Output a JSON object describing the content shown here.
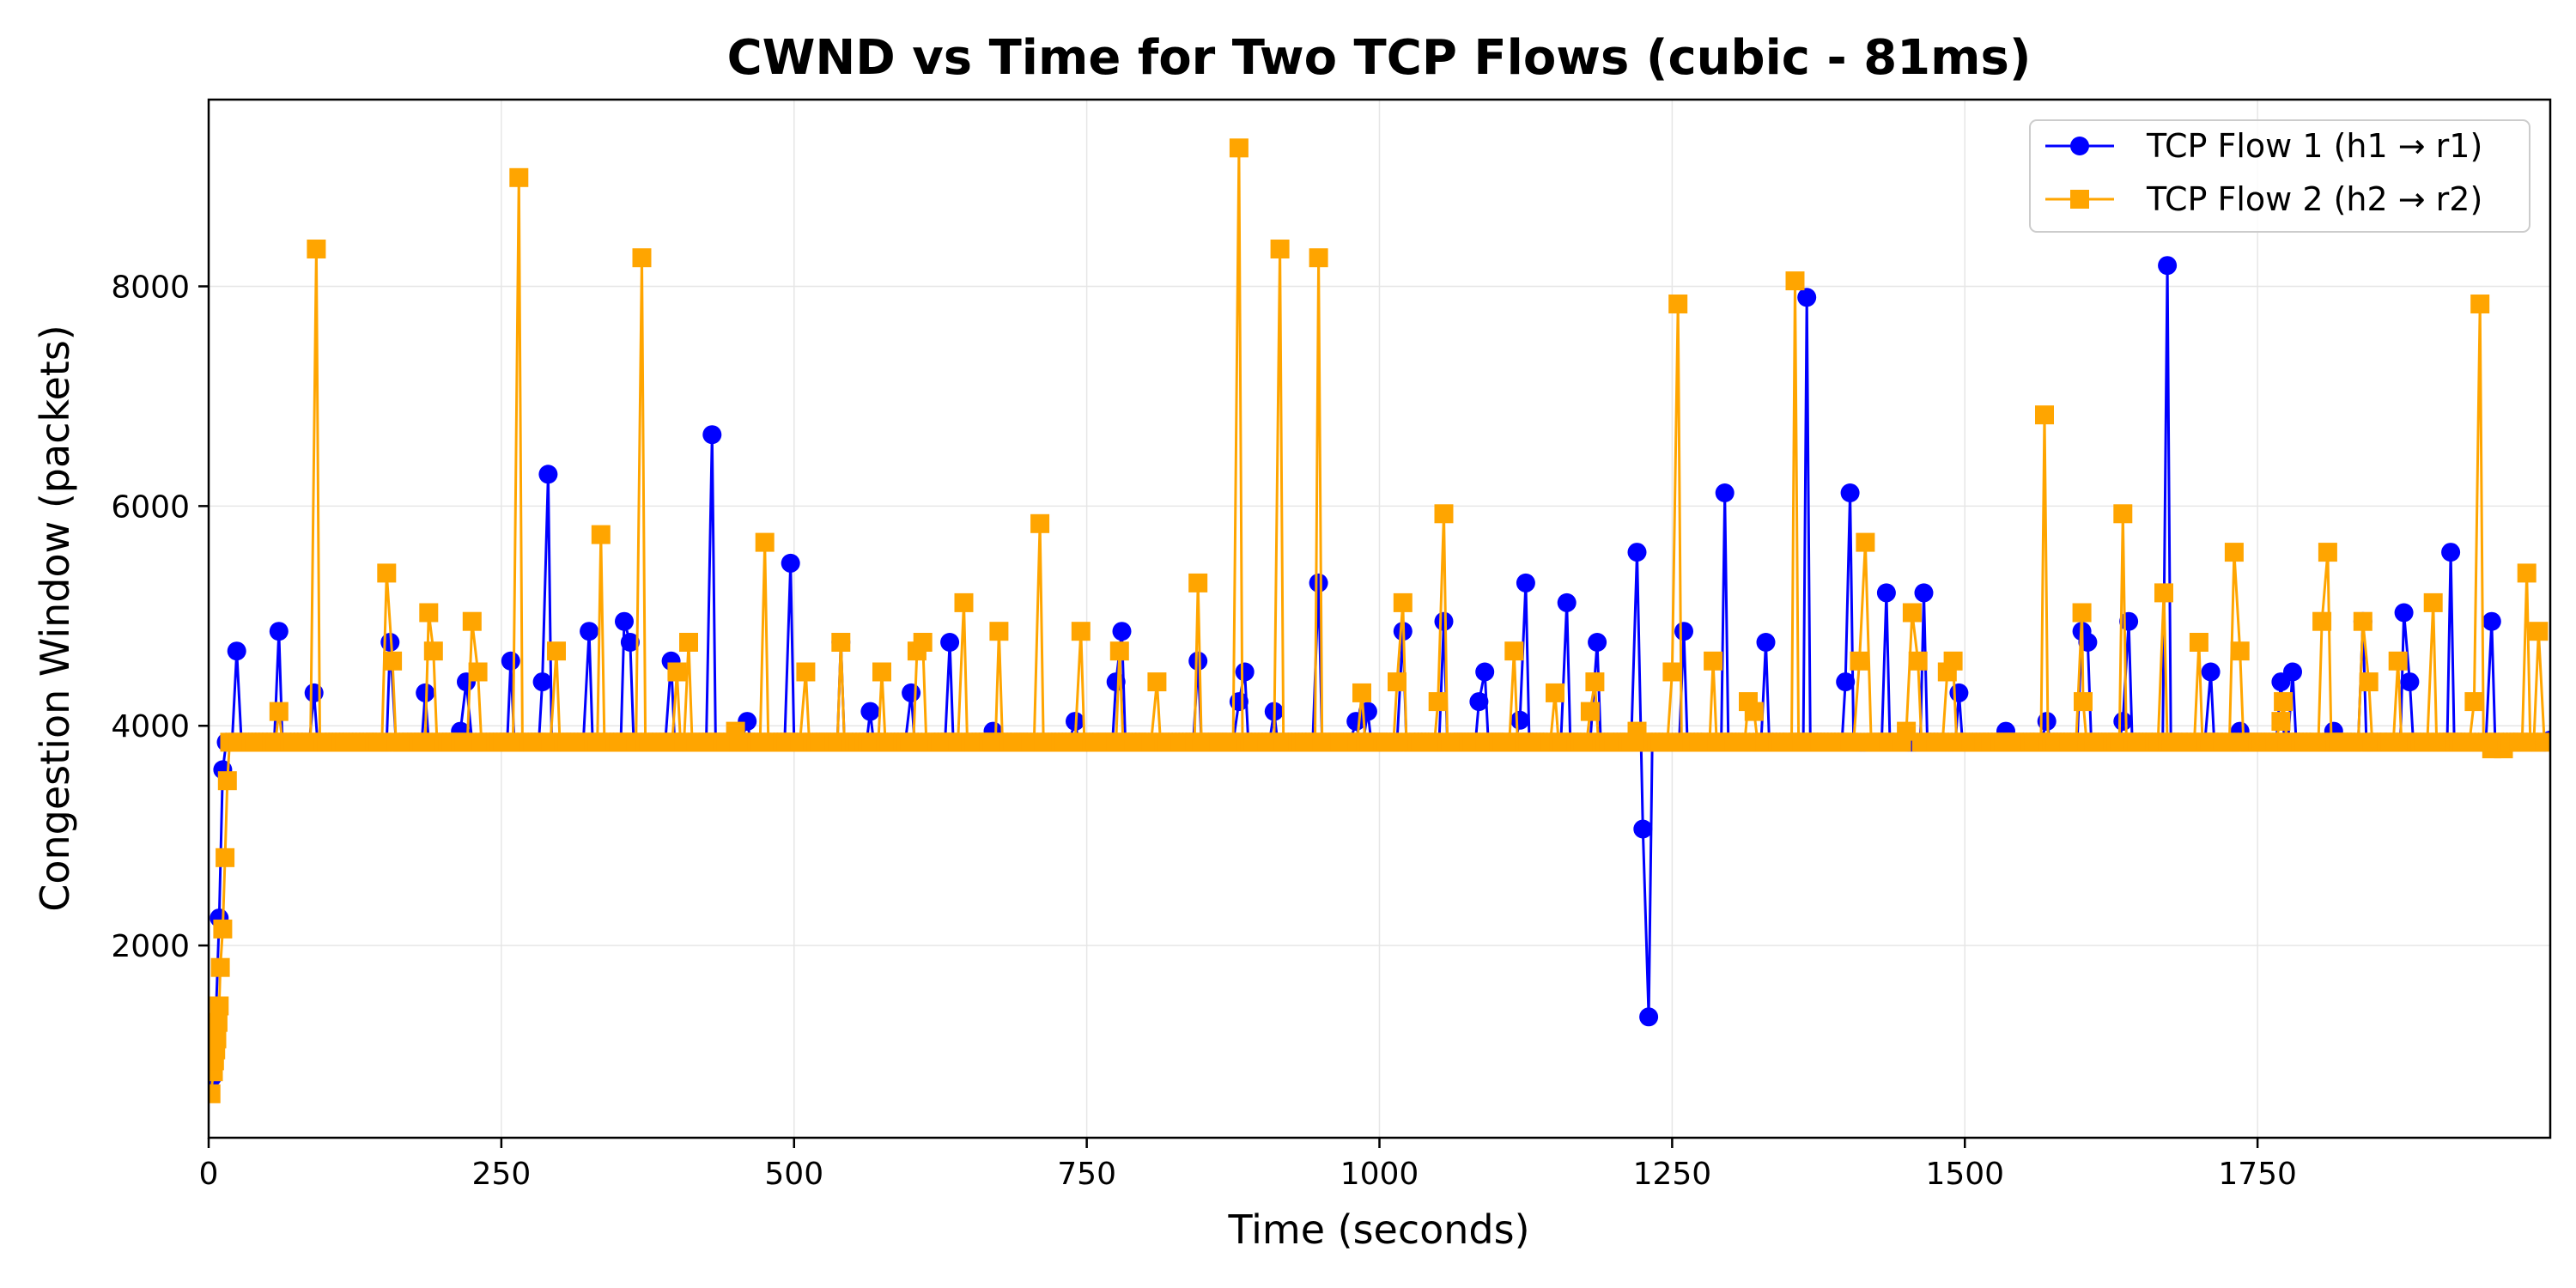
{
  "chart_data": {
    "type": "line",
    "title": "CWND vs Time for Two TCP Flows (cubic - 81ms)",
    "xlabel": "Time (seconds)",
    "ylabel": "Congestion Window (packets)",
    "xlim": [
      0,
      2000
    ],
    "ylim": [
      250,
      9700
    ],
    "xticks": [
      0,
      250,
      500,
      750,
      1000,
      1250,
      1500,
      1750
    ],
    "yticks": [
      2000,
      4000,
      6000,
      8000
    ],
    "grid": true,
    "legend": "top-right",
    "baseline": 3850,
    "series": [
      {
        "name": "TCP Flow 1 (h1 → r1)",
        "color": "#0000ff",
        "marker": "circle",
        "x": [
          3,
          6,
          9,
          12,
          15,
          20,
          24,
          28,
          40,
          50,
          60,
          70,
          80,
          90,
          100,
          120,
          140,
          155,
          160,
          170,
          185,
          200,
          215,
          220,
          225,
          240,
          258,
          270,
          285,
          290,
          300,
          320,
          325,
          340,
          355,
          360,
          370,
          390,
          395,
          410,
          430,
          440,
          460,
          480,
          497,
          510,
          540,
          550,
          565,
          580,
          600,
          620,
          633,
          640,
          670,
          690,
          720,
          740,
          760,
          775,
          780,
          800,
          820,
          845,
          860,
          880,
          885,
          900,
          910,
          948,
          960,
          980,
          990,
          1000,
          1020,
          1030,
          1055,
          1070,
          1085,
          1090,
          1110,
          1120,
          1125,
          1140,
          1160,
          1180,
          1186,
          1200,
          1220,
          1225,
          1230,
          1250,
          1260,
          1280,
          1295,
          1310,
          1320,
          1330,
          1350,
          1365,
          1380,
          1398,
          1402,
          1420,
          1433,
          1450,
          1465,
          1480,
          1495,
          1520,
          1535,
          1550,
          1570,
          1590,
          1600,
          1605,
          1620,
          1635,
          1640,
          1660,
          1673,
          1690,
          1710,
          1720,
          1735,
          1760,
          1770,
          1780,
          1800,
          1815,
          1840,
          1860,
          1875,
          1880,
          1900,
          1915,
          1930,
          1950,
          1960,
          1980,
          2000
        ],
        "y": [
          800,
          1300,
          2250,
          3600,
          3850,
          3850,
          4680,
          3850,
          3850,
          3850,
          4860,
          3850,
          3850,
          4300,
          3850,
          3850,
          3850,
          4760,
          3850,
          3850,
          4300,
          3850,
          3950,
          4400,
          3850,
          3850,
          4590,
          3850,
          4400,
          6290,
          3850,
          3850,
          4860,
          3850,
          4950,
          4760,
          3850,
          3850,
          4590,
          3850,
          6650,
          3850,
          4040,
          3850,
          5480,
          3850,
          4760,
          3850,
          4130,
          3850,
          4300,
          3850,
          4760,
          3850,
          3950,
          3850,
          3850,
          4040,
          3850,
          4400,
          4860,
          3850,
          3850,
          4590,
          3850,
          4220,
          4490,
          3850,
          4130,
          5300,
          3850,
          4040,
          4130,
          3850,
          4860,
          3850,
          4950,
          3850,
          4220,
          4490,
          3850,
          4050,
          5300,
          3850,
          5120,
          3850,
          4760,
          3850,
          5580,
          3060,
          1350,
          3850,
          4860,
          3850,
          6120,
          3850,
          3850,
          4760,
          3850,
          7900,
          3850,
          4400,
          6120,
          3850,
          5210,
          3850,
          5210,
          3850,
          4300,
          3850,
          3950,
          3850,
          4040,
          3850,
          4860,
          4760,
          3850,
          4040,
          4950,
          3850,
          8190,
          3850,
          4490,
          3850,
          3950,
          3850,
          4400,
          4490,
          3850,
          3950,
          4950,
          3850,
          5030,
          4400,
          3850,
          5580,
          3850,
          4950,
          3850,
          3850,
          3870
        ]
      },
      {
        "name": "TCP Flow 2 (h2 → r2)",
        "color": "#ffa500",
        "marker": "square",
        "x": [
          2,
          4,
          5,
          6,
          7,
          8,
          9,
          10,
          12,
          14,
          16,
          18,
          22,
          30,
          45,
          60,
          75,
          92,
          110,
          130,
          152,
          157,
          170,
          188,
          192,
          215,
          225,
          230,
          245,
          265,
          280,
          297,
          320,
          335,
          350,
          370,
          390,
          400,
          410,
          430,
          450,
          475,
          490,
          510,
          525,
          540,
          560,
          575,
          590,
          605,
          610,
          625,
          645,
          660,
          675,
          690,
          710,
          725,
          745,
          760,
          778,
          790,
          810,
          830,
          845,
          860,
          880,
          895,
          915,
          930,
          948,
          960,
          985,
          1000,
          1015,
          1020,
          1035,
          1050,
          1055,
          1070,
          1090,
          1115,
          1140,
          1150,
          1165,
          1180,
          1184,
          1200,
          1220,
          1225,
          1240,
          1250,
          1255,
          1270,
          1285,
          1300,
          1315,
          1320,
          1340,
          1355,
          1370,
          1390,
          1410,
          1415,
          1420,
          1440,
          1450,
          1455,
          1460,
          1475,
          1485,
          1490,
          1510,
          1530,
          1550,
          1568,
          1580,
          1600,
          1601,
          1620,
          1635,
          1650,
          1670,
          1690,
          1700,
          1720,
          1730,
          1735,
          1750,
          1770,
          1772,
          1790,
          1805,
          1810,
          1830,
          1840,
          1845,
          1860,
          1870,
          1880,
          1900,
          1910,
          1935,
          1940,
          1950,
          1960,
          1970,
          1980,
          1990,
          1995
        ],
        "y": [
          650,
          850,
          950,
          1050,
          1150,
          1300,
          1450,
          1800,
          2150,
          2800,
          3500,
          3850,
          3850,
          3850,
          3850,
          4130,
          3850,
          8340,
          3850,
          3850,
          5390,
          4590,
          3850,
          5030,
          4680,
          3850,
          4950,
          4490,
          3850,
          8990,
          3850,
          4680,
          3850,
          5740,
          3850,
          8260,
          3850,
          4490,
          4760,
          3850,
          3950,
          5670,
          3850,
          4490,
          3850,
          4760,
          3850,
          4490,
          3850,
          4680,
          4760,
          3850,
          5120,
          3850,
          4860,
          3850,
          5840,
          3850,
          4860,
          3850,
          4680,
          3850,
          4400,
          3850,
          5300,
          3850,
          9260,
          3850,
          8340,
          3850,
          8260,
          3850,
          4300,
          3850,
          4400,
          5120,
          3850,
          4220,
          5930,
          3850,
          3850,
          4680,
          3850,
          4300,
          3850,
          4130,
          4400,
          3850,
          3950,
          3850,
          3850,
          4490,
          7840,
          3850,
          4590,
          3850,
          4220,
          4130,
          3850,
          8050,
          3850,
          3850,
          4590,
          5670,
          3850,
          3850,
          3950,
          5030,
          4590,
          3850,
          4490,
          4590,
          3850,
          3850,
          3850,
          6830,
          3850,
          5030,
          4220,
          3850,
          5930,
          3850,
          5210,
          3850,
          4760,
          3850,
          5580,
          4680,
          3850,
          4040,
          4220,
          3850,
          4950,
          5580,
          3850,
          4950,
          4400,
          3850,
          4590,
          3850,
          5120,
          3850,
          4220,
          7840,
          3790,
          3790,
          3850,
          5390,
          4860,
          3850
        ]
      }
    ]
  }
}
